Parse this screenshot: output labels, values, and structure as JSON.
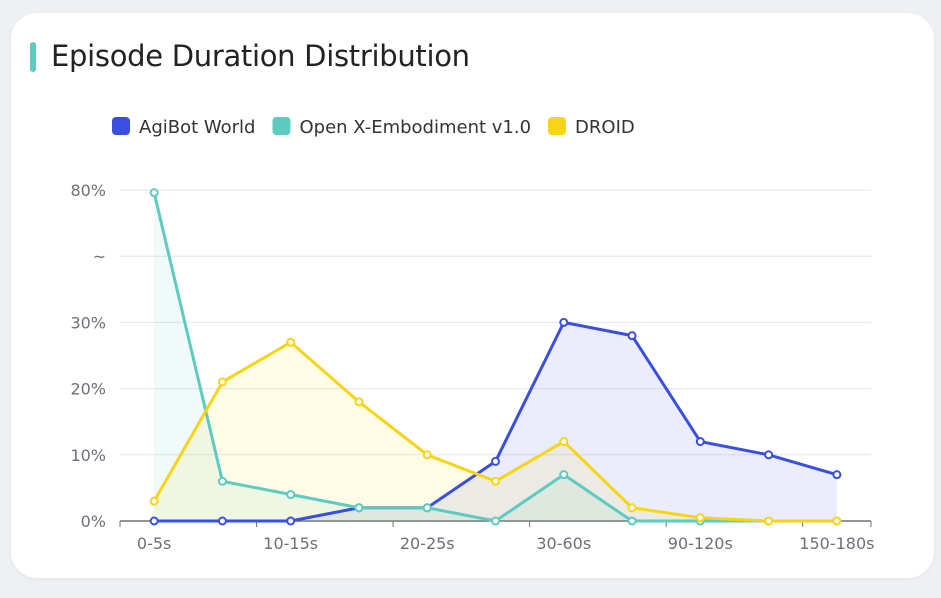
{
  "card": {
    "title": "Episode Duration Distribution",
    "accent_color": "#5ecbc0"
  },
  "chart_data": {
    "type": "line",
    "title": "Episode Duration Distribution",
    "categories": [
      "0-5s",
      "",
      "10-15s",
      "",
      "20-25s",
      "",
      "30-60s",
      "",
      "90-120s",
      "",
      "150-180s"
    ],
    "y_ticks": [
      "0%",
      "10%",
      "20%",
      "30%",
      "~",
      "80%"
    ],
    "y_axis_break": "30% to 80%",
    "ylim": [
      0,
      80
    ],
    "grid": true,
    "legend_position": "top",
    "area_fill": true,
    "series": [
      {
        "name": "AgiBot World",
        "color": "#3a4fe0",
        "values": [
          0,
          0,
          0,
          2,
          2,
          9,
          30,
          28,
          12,
          10,
          7
        ]
      },
      {
        "name": "Open X-Embodiment v1.0",
        "color": "#5ecbc0",
        "values": [
          79,
          6,
          4,
          2,
          2,
          0,
          7,
          0,
          0,
          0,
          0
        ]
      },
      {
        "name": "DROID",
        "color": "#f7d514",
        "values": [
          3,
          21,
          27,
          18,
          10,
          6,
          12,
          2,
          0.5,
          0,
          0
        ]
      }
    ]
  }
}
